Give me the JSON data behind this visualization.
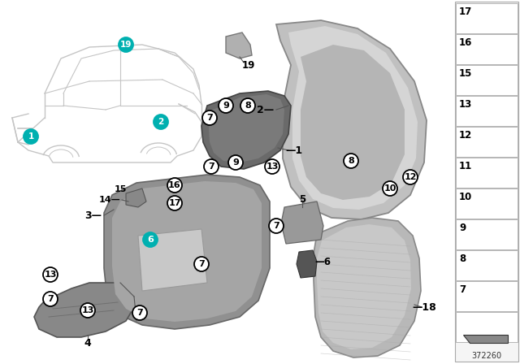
{
  "bg_color": "#ffffff",
  "diagram_number": "372260",
  "teal_color": "#00b0b0",
  "part_gray_light": "#c8c8c8",
  "part_gray_mid": "#a8a8a8",
  "part_gray_dark": "#787878",
  "right_panel_items": [
    17,
    16,
    15,
    13,
    12,
    11,
    10,
    9,
    8,
    7
  ]
}
